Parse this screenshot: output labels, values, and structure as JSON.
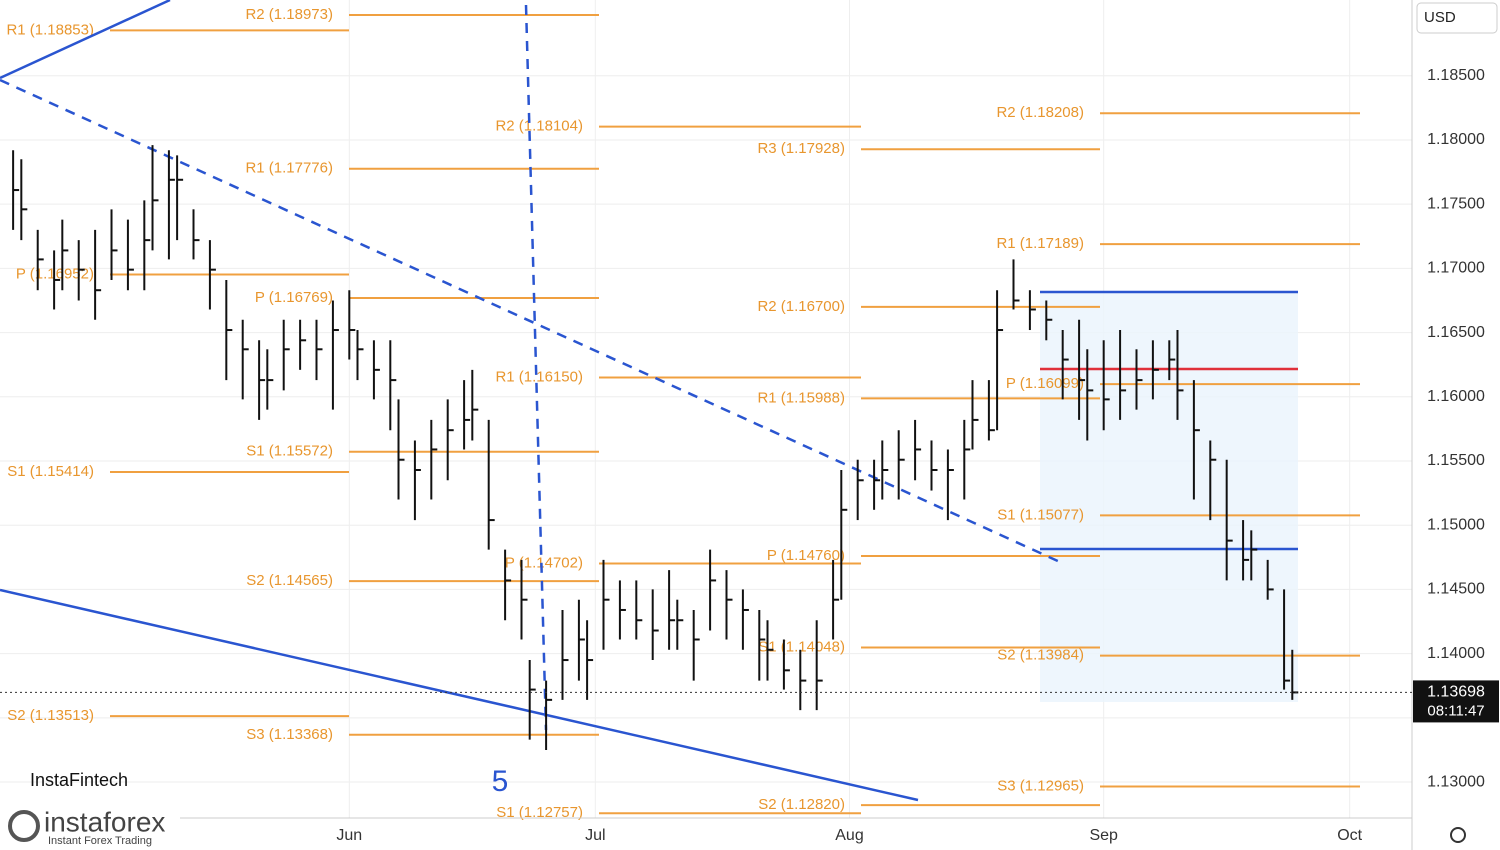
{
  "chart_data": {
    "type": "ohlc",
    "currency": "USD",
    "countdown": "08:11:47",
    "wave_label": "5",
    "brand": "InstaFintech",
    "logo": {
      "name": "instaforex",
      "tagline": "Instant Forex Trading"
    },
    "xlim": [
      -42.6,
      129.6
    ],
    "xticks": [
      {
        "value": 0,
        "label": "Jun"
      },
      {
        "value": 30,
        "label": "Jul"
      },
      {
        "value": 61,
        "label": "Aug"
      },
      {
        "value": 92,
        "label": "Sep"
      },
      {
        "value": 122,
        "label": "Oct"
      }
    ],
    "ylim": [
      1.1272,
      1.1909
    ],
    "yticks": [
      {
        "value": 1.13,
        "label": "1.13000"
      },
      {
        "value": 1.135,
        "label": "1.13500"
      },
      {
        "value": 1.14,
        "label": "1.14000"
      },
      {
        "value": 1.145,
        "label": "1.14500"
      },
      {
        "value": 1.15,
        "label": "1.15000"
      },
      {
        "value": 1.155,
        "label": "1.15500"
      },
      {
        "value": 1.16,
        "label": "1.16000"
      },
      {
        "value": 1.165,
        "label": "1.16500"
      },
      {
        "value": 1.17,
        "label": "1.17000"
      },
      {
        "value": 1.175,
        "label": "1.17500"
      },
      {
        "value": 1.18,
        "label": "1.18000"
      },
      {
        "value": 1.185,
        "label": "1.18500"
      }
    ],
    "color": "#111111",
    "x": [
      -41,
      -40,
      -38,
      -36,
      -35,
      -33,
      -31,
      -29,
      -27,
      -25,
      -24,
      -22,
      -21,
      -19,
      -17,
      -15,
      -13,
      -11,
      -10,
      -8,
      -6,
      -4,
      -2,
      0,
      1,
      3,
      5,
      6,
      8,
      10,
      12,
      14,
      15,
      17,
      19,
      21,
      22,
      24,
      26,
      28,
      29,
      31,
      33,
      35,
      37,
      39,
      40,
      42,
      44,
      46,
      48,
      50,
      51,
      53,
      55,
      57,
      59,
      60,
      62,
      64,
      65,
      67,
      69,
      71,
      73,
      75,
      76,
      78,
      79,
      81,
      83,
      85,
      87,
      89,
      90,
      92,
      94,
      96,
      98,
      100,
      101,
      103,
      105,
      107,
      109,
      110,
      112,
      114,
      115
    ],
    "high": [
      1.1792,
      1.1785,
      1.173,
      1.1714,
      1.1738,
      1.1722,
      1.173,
      1.1746,
      1.1738,
      1.1753,
      1.1796,
      1.1792,
      1.1788,
      1.1746,
      1.1722,
      1.1691,
      1.166,
      1.1644,
      1.1637,
      1.166,
      1.166,
      1.166,
      1.1675,
      1.1683,
      1.1652,
      1.1644,
      1.1644,
      1.1598,
      1.1566,
      1.1582,
      1.1598,
      1.1613,
      1.1621,
      1.1582,
      1.1481,
      1.1473,
      1.1395,
      1.1379,
      1.1434,
      1.1442,
      1.1426,
      1.1473,
      1.1457,
      1.1457,
      1.145,
      1.1465,
      1.1442,
      1.1434,
      1.1481,
      1.1465,
      1.145,
      1.1434,
      1.1426,
      1.1411,
      1.1403,
      1.1426,
      1.1473,
      1.1543,
      1.1551,
      1.1551,
      1.1566,
      1.1574,
      1.1582,
      1.1566,
      1.1559,
      1.1582,
      1.1613,
      1.1613,
      1.1683,
      1.1707,
      1.1683,
      1.1675,
      1.1652,
      1.166,
      1.1637,
      1.1644,
      1.1652,
      1.1637,
      1.1644,
      1.1644,
      1.1652,
      1.1613,
      1.1566,
      1.1551,
      1.1504,
      1.1496,
      1.1473,
      1.145,
      1.1403
    ],
    "low": [
      1.173,
      1.1722,
      1.1683,
      1.1668,
      1.1683,
      1.1675,
      1.166,
      1.1691,
      1.1683,
      1.1683,
      1.1714,
      1.1707,
      1.1722,
      1.1707,
      1.1668,
      1.1613,
      1.1598,
      1.1582,
      1.159,
      1.1605,
      1.1621,
      1.1613,
      1.159,
      1.1629,
      1.1613,
      1.1598,
      1.1574,
      1.152,
      1.1504,
      1.152,
      1.1535,
      1.1559,
      1.1566,
      1.1481,
      1.1426,
      1.1411,
      1.1333,
      1.1325,
      1.1364,
      1.1379,
      1.1364,
      1.1403,
      1.1411,
      1.1411,
      1.1395,
      1.1403,
      1.1403,
      1.1379,
      1.1418,
      1.1411,
      1.1403,
      1.1379,
      1.1379,
      1.1372,
      1.1356,
      1.1356,
      1.1411,
      1.1442,
      1.1504,
      1.1512,
      1.152,
      1.152,
      1.1535,
      1.1527,
      1.1504,
      1.152,
      1.1559,
      1.1566,
      1.1574,
      1.1668,
      1.1652,
      1.1644,
      1.1598,
      1.1582,
      1.1566,
      1.1574,
      1.1582,
      1.159,
      1.1598,
      1.1613,
      1.1582,
      1.152,
      1.1504,
      1.1457,
      1.1457,
      1.1457,
      1.1442,
      1.1372,
      1.1364
    ],
    "close": [
      1.1761,
      1.1746,
      1.1707,
      1.1691,
      1.1714,
      1.1699,
      1.1683,
      1.1714,
      1.1699,
      1.1722,
      1.1753,
      1.1769,
      1.1769,
      1.1722,
      1.1699,
      1.1652,
      1.1637,
      1.1613,
      1.1613,
      1.1637,
      1.1644,
      1.1637,
      1.1652,
      1.1652,
      1.1637,
      1.1621,
      1.1613,
      1.1551,
      1.1543,
      1.1559,
      1.1574,
      1.1582,
      1.159,
      1.1504,
      1.1457,
      1.1442,
      1.1372,
      1.1364,
      1.1395,
      1.1411,
      1.1395,
      1.1442,
      1.1434,
      1.1426,
      1.1418,
      1.1426,
      1.1426,
      1.1411,
      1.1457,
      1.1442,
      1.1434,
      1.1411,
      1.1403,
      1.1387,
      1.1379,
      1.1379,
      1.1442,
      1.1512,
      1.1535,
      1.1535,
      1.1543,
      1.1551,
      1.1559,
      1.1543,
      1.1543,
      1.1559,
      1.1582,
      1.1574,
      1.1652,
      1.1675,
      1.1668,
      1.166,
      1.1629,
      1.1613,
      1.1605,
      1.1598,
      1.1605,
      1.1613,
      1.1621,
      1.1629,
      1.1605,
      1.1574,
      1.1551,
      1.1488,
      1.1473,
      1.1481,
      1.145,
      1.1379,
      1.13698
    ],
    "pivots": [
      [
        {
          "label": "R1 (1.18853)",
          "value": 1.18853
        },
        {
          "label": "P (1.16952)",
          "value": 1.16952
        },
        {
          "label": "S1 (1.15414)",
          "value": 1.15414
        },
        {
          "label": "S2 (1.13513)",
          "value": 1.13513
        }
      ],
      [
        {
          "label": "R2 (1.18973)",
          "value": 1.18973
        },
        {
          "label": "R1 (1.17776)",
          "value": 1.17776
        },
        {
          "label": "P (1.16769)",
          "value": 1.16769
        },
        {
          "label": "S1 (1.15572)",
          "value": 1.15572
        },
        {
          "label": "S2 (1.14565)",
          "value": 1.14565
        },
        {
          "label": "S3 (1.13368)",
          "value": 1.13368
        }
      ],
      [
        {
          "label": "R2 (1.18104)",
          "value": 1.18104
        },
        {
          "label": "R1 (1.16150)",
          "value": 1.1615
        },
        {
          "label": "P (1.14702)",
          "value": 1.14702
        },
        {
          "label": "S1 (1.12757)",
          "value": 1.12757
        }
      ],
      [
        {
          "label": "R3 (1.17928)",
          "value": 1.17928
        },
        {
          "label": "R2 (1.16700)",
          "value": 1.167
        },
        {
          "label": "R1 (1.15988)",
          "value": 1.15988
        },
        {
          "label": "P (1.14760)",
          "value": 1.1476
        },
        {
          "label": "S1 (1.14048)",
          "value": 1.14048
        },
        {
          "label": "S2 (1.12820)",
          "value": 1.1282
        }
      ],
      [
        {
          "label": "R2 (1.18208)",
          "value": 1.18208
        },
        {
          "label": "R1 (1.17189)",
          "value": 1.17189
        },
        {
          "label": "P (1.16099)",
          "value": 1.16099
        },
        {
          "label": "S1 (1.15077)",
          "value": 1.15077
        },
        {
          "label": "S2 (1.13984)",
          "value": 1.13984
        },
        {
          "label": "S3 (1.12965)",
          "value": 1.12965
        }
      ]
    ]
  }
}
